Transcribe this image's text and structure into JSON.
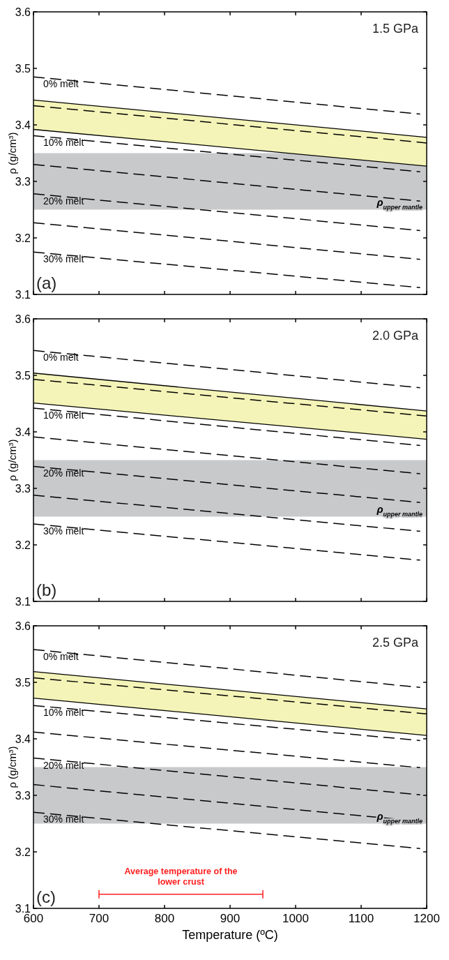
{
  "chart_data": [
    {
      "type": "line",
      "ylabel": "ρ (g/cm³)",
      "xlim": [
        600,
        1200
      ],
      "xticks": [
        600,
        700,
        800,
        900,
        1000,
        1100,
        1200
      ],
      "ylim": [
        3.1,
        3.6
      ],
      "yticks": [
        3.1,
        3.2,
        3.3,
        3.4,
        3.5,
        3.6
      ],
      "tick_labels": "y",
      "line_style": "dashed",
      "annotations": [
        "1.5 GPa",
        "(a)"
      ],
      "bands": [
        {
          "axis": "y",
          "from": 3.25,
          "to": 3.35,
          "label": "ρ$_{upper mantle}$",
          "color": "#c8c9cb"
        }
      ],
      "series": [
        {
          "type": "line",
          "line_style": "solid",
          "color": "#000000",
          "x": [
            600,
            1200
          ],
          "values": [
            3.444,
            3.378
          ]
        },
        {
          "type": "line",
          "line_style": "solid",
          "color": "#000000",
          "x": [
            600,
            1200
          ],
          "values": [
            3.392,
            3.327
          ]
        },
        {
          "name": "0% melt",
          "color": "#000000",
          "x": [
            600,
            1190
          ],
          "values": [
            3.485,
            3.419
          ]
        },
        {
          "color": "#000000",
          "x": [
            600,
            1200
          ],
          "values": [
            3.434,
            3.368
          ]
        },
        {
          "name": "10% melt",
          "color": "#000000",
          "x": [
            600,
            1190
          ],
          "values": [
            3.381,
            3.317
          ]
        },
        {
          "color": "#000000",
          "x": [
            600,
            1190
          ],
          "values": [
            3.33,
            3.265
          ]
        },
        {
          "name": "20% melt",
          "color": "#000000",
          "x": [
            600,
            1190
          ],
          "values": [
            3.278,
            3.213
          ]
        },
        {
          "color": "#000000",
          "x": [
            600,
            1190
          ],
          "values": [
            3.227,
            3.162
          ]
        },
        {
          "name": "30% melt",
          "color": "#000000",
          "x": [
            600,
            1190
          ],
          "values": [
            3.175,
            3.112
          ]
        }
      ]
    },
    {
      "type": "line",
      "ylabel": "ρ (g/cm³)",
      "xlim": [
        600,
        1200
      ],
      "xticks": [
        600,
        700,
        800,
        900,
        1000,
        1100,
        1200
      ],
      "ylim": [
        3.1,
        3.6
      ],
      "yticks": [
        3.1,
        3.2,
        3.3,
        3.4,
        3.5,
        3.6
      ],
      "tick_labels": "y",
      "line_style": "dashed",
      "annotations": [
        "2.0 GPa",
        "(b)"
      ],
      "bands": [
        {
          "axis": "y",
          "from": 3.25,
          "to": 3.35,
          "label": "ρ$_{upper mantle}$",
          "color": "#c8c9cb"
        }
      ],
      "series": [
        {
          "type": "line",
          "line_style": "solid",
          "color": "#000000",
          "x": [
            600,
            1200
          ],
          "values": [
            3.504,
            3.437
          ]
        },
        {
          "type": "line",
          "line_style": "solid",
          "color": "#000000",
          "x": [
            600,
            1200
          ],
          "values": [
            3.451,
            3.387
          ]
        },
        {
          "name": "0% melt",
          "color": "#000000",
          "x": [
            600,
            1190
          ],
          "values": [
            3.544,
            3.478
          ]
        },
        {
          "color": "#000000",
          "x": [
            600,
            1200
          ],
          "values": [
            3.493,
            3.428
          ]
        },
        {
          "name": "10% melt",
          "color": "#000000",
          "x": [
            600,
            1190
          ],
          "values": [
            3.442,
            3.376
          ]
        },
        {
          "color": "#000000",
          "x": [
            600,
            1190
          ],
          "values": [
            3.391,
            3.326
          ]
        },
        {
          "name": "20% melt",
          "color": "#000000",
          "x": [
            600,
            1190
          ],
          "values": [
            3.339,
            3.275
          ]
        },
        {
          "color": "#000000",
          "x": [
            600,
            1190
          ],
          "values": [
            3.288,
            3.224
          ]
        },
        {
          "name": "30% melt",
          "color": "#000000",
          "x": [
            600,
            1190
          ],
          "values": [
            3.237,
            3.173
          ]
        }
      ]
    },
    {
      "type": "line",
      "xlabel": "Temperature (ºC)",
      "ylabel": "ρ (g/cm³)",
      "xlim": [
        600,
        1200
      ],
      "xticks": [
        600,
        700,
        800,
        900,
        1000,
        1100,
        1200
      ],
      "ylim": [
        3.1,
        3.6
      ],
      "yticks": [
        3.1,
        3.2,
        3.3,
        3.4,
        3.5,
        3.6
      ],
      "line_style": "dashed",
      "annotations": [
        "2.5 GPa",
        "(c)"
      ],
      "bands": [
        {
          "axis": "y",
          "from": 3.25,
          "to": 3.35,
          "label": "ρ$_{upper mantle}$",
          "color": "#c8c9cb"
        }
      ],
      "series": [
        {
          "type": "line",
          "line_style": "solid",
          "color": "#000000",
          "x": [
            600,
            1200
          ],
          "values": [
            3.519,
            3.453
          ]
        },
        {
          "type": "line",
          "line_style": "solid",
          "color": "#000000",
          "x": [
            600,
            1200
          ],
          "values": [
            3.472,
            3.406
          ]
        },
        {
          "type": "line",
          "line_style": "solid",
          "name": "Average temperature of the lower crust",
          "color": "#ff2020",
          "x": [
            700,
            950
          ],
          "values": [
            3.125,
            3.125
          ]
        },
        {
          "name": "0% melt",
          "color": "#000000",
          "x": [
            600,
            1190
          ],
          "values": [
            3.558,
            3.491
          ]
        },
        {
          "color": "#000000",
          "x": [
            600,
            1200
          ],
          "values": [
            3.508,
            3.444
          ]
        },
        {
          "name": "10% melt",
          "color": "#000000",
          "x": [
            600,
            1190
          ],
          "values": [
            3.459,
            3.397
          ]
        },
        {
          "color": "#000000",
          "x": [
            600,
            1190
          ],
          "values": [
            3.412,
            3.349
          ]
        },
        {
          "name": "20% melt",
          "color": "#000000",
          "x": [
            600,
            1190
          ],
          "values": [
            3.366,
            3.301
          ]
        },
        {
          "color": "#000000",
          "x": [
            600,
            1190
          ],
          "values": [
            3.319,
            3.254
          ]
        },
        {
          "name": "30% melt",
          "color": "#000000",
          "x": [
            600,
            1190
          ],
          "values": [
            3.27,
            3.206
          ]
        }
      ]
    }
  ]
}
